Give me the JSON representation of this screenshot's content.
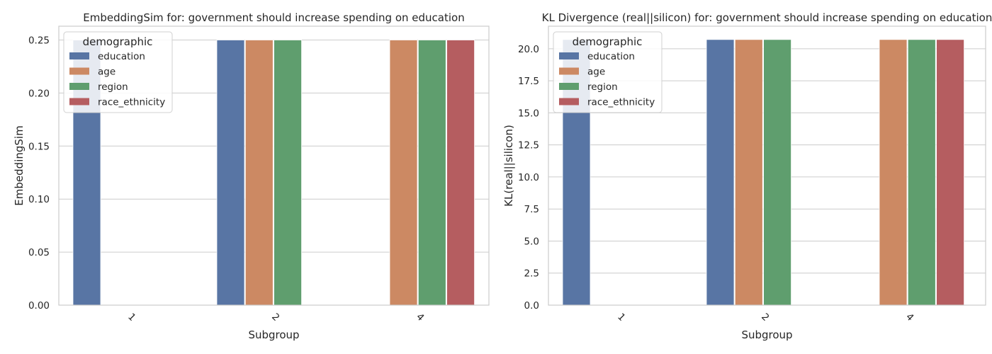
{
  "chart_data": [
    {
      "type": "bar",
      "title": "EmbeddingSim for: government should increase spending on education",
      "xlabel": "Subgroup",
      "ylabel": "EmbeddingSim",
      "categories": [
        "1",
        "2",
        "4"
      ],
      "ylim": [
        0,
        0.263
      ],
      "yticks": [
        "0.00",
        "0.05",
        "0.10",
        "0.15",
        "0.20",
        "0.25"
      ],
      "ytick_values": [
        0,
        0.05,
        0.1,
        0.15,
        0.2,
        0.25
      ],
      "grid": true,
      "legend": {
        "title": "demographic",
        "position": "upper left"
      },
      "series": [
        {
          "name": "education",
          "color": "#5875a4",
          "values": [
            0.25,
            0.25,
            null
          ]
        },
        {
          "name": "age",
          "color": "#cc8963",
          "values": [
            null,
            0.25,
            0.25
          ]
        },
        {
          "name": "region",
          "color": "#5f9e6e",
          "values": [
            null,
            0.25,
            0.25
          ]
        },
        {
          "name": "race_ethnicity",
          "color": "#b55d60",
          "values": [
            null,
            null,
            0.25
          ]
        }
      ]
    },
    {
      "type": "bar",
      "title": "KL Divergence (real||silicon) for: government should increase spending on education",
      "xlabel": "Subgroup",
      "ylabel": "KL(real||silicon)",
      "categories": [
        "1",
        "2",
        "4"
      ],
      "ylim": [
        0,
        21.76
      ],
      "yticks": [
        "0.0",
        "2.5",
        "5.0",
        "7.5",
        "10.0",
        "12.5",
        "15.0",
        "17.5",
        "20.0"
      ],
      "ytick_values": [
        0,
        2.5,
        5,
        7.5,
        10,
        12.5,
        15,
        17.5,
        20
      ],
      "grid": true,
      "legend": {
        "title": "demographic",
        "position": "upper left"
      },
      "series": [
        {
          "name": "education",
          "color": "#5875a4",
          "values": [
            20.72,
            20.72,
            null
          ]
        },
        {
          "name": "age",
          "color": "#cc8963",
          "values": [
            null,
            20.72,
            20.72
          ]
        },
        {
          "name": "region",
          "color": "#5f9e6e",
          "values": [
            null,
            20.72,
            20.72
          ]
        },
        {
          "name": "race_ethnicity",
          "color": "#b55d60",
          "values": [
            null,
            null,
            20.72
          ]
        }
      ]
    }
  ]
}
